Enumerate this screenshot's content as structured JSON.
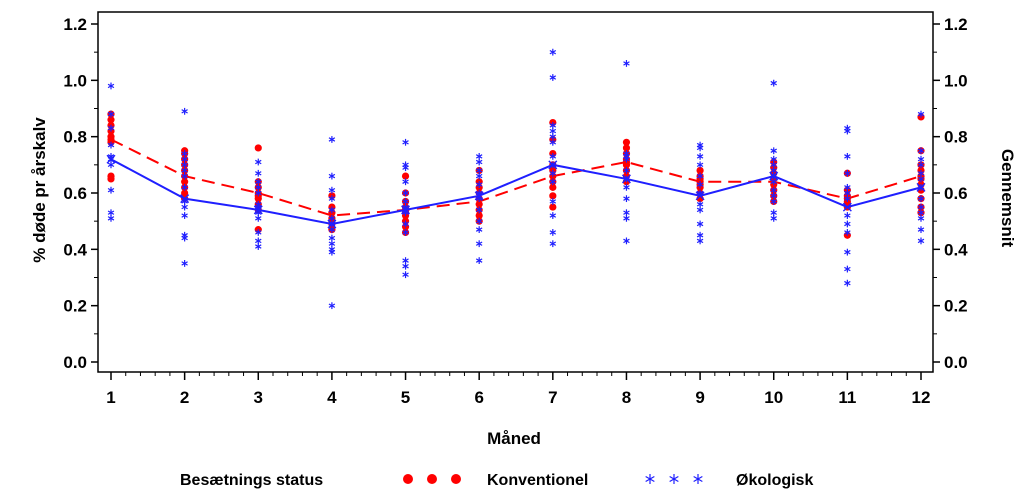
{
  "chart_data": {
    "type": "scatter",
    "xlabel": "Måned",
    "ylabel": "% døde pr årskalv",
    "y2label": "Gennemsnit",
    "x": [
      1,
      2,
      3,
      4,
      5,
      6,
      7,
      8,
      9,
      10,
      11,
      12
    ],
    "xlim": [
      1,
      12
    ],
    "ylim": [
      0.0,
      1.2
    ],
    "y_ticks": [
      "0.0",
      "0.2",
      "0.4",
      "0.6",
      "0.8",
      "1.0",
      "1.2"
    ],
    "grid": false,
    "legend": {
      "title": "Besætnings status",
      "placement": "bottom"
    },
    "series": [
      {
        "name": "Konventionel",
        "marker": "dot",
        "color": "#ff0000",
        "points": [
          [
            [
              0.88,
              0.86,
              0.84,
              0.82,
              0.8,
              0.79,
              0.78,
              0.66,
              0.65
            ]
          ],
          [
            [
              0.75,
              0.74,
              0.72,
              0.7,
              0.68,
              0.66,
              0.64,
              0.62,
              0.6,
              0.58
            ]
          ],
          [
            [
              0.76,
              0.64,
              0.62,
              0.6,
              0.59,
              0.58,
              0.56,
              0.54,
              0.47
            ]
          ],
          [
            [
              0.59,
              0.55,
              0.53,
              0.51,
              0.5,
              0.49,
              0.47
            ]
          ],
          [
            [
              0.66,
              0.6,
              0.57,
              0.55,
              0.54,
              0.53,
              0.52,
              0.5,
              0.48,
              0.46
            ]
          ],
          [
            [
              0.68,
              0.64,
              0.62,
              0.6,
              0.58,
              0.56,
              0.54,
              0.52,
              0.5
            ]
          ],
          [
            [
              0.85,
              0.79,
              0.74,
              0.7,
              0.68,
              0.66,
              0.64,
              0.62,
              0.59,
              0.55
            ]
          ],
          [
            [
              0.78,
              0.76,
              0.74,
              0.72,
              0.71,
              0.7,
              0.68,
              0.66,
              0.64
            ]
          ],
          [
            [
              0.68,
              0.66,
              0.65,
              0.64,
              0.63,
              0.62,
              0.6,
              0.58
            ]
          ],
          [
            [
              0.71,
              0.69,
              0.67,
              0.65,
              0.63,
              0.61,
              0.59,
              0.57
            ]
          ],
          [
            [
              0.67,
              0.61,
              0.59,
              0.58,
              0.57,
              0.56,
              0.55,
              0.45
            ]
          ],
          [
            [
              0.87,
              0.75,
              0.7,
              0.68,
              0.66,
              0.65,
              0.63,
              0.61,
              0.58,
              0.55,
              0.53
            ]
          ]
        ],
        "mean_line": [
          0.79,
          0.66,
          0.6,
          0.52,
          0.54,
          0.57,
          0.66,
          0.71,
          0.64,
          0.64,
          0.58,
          0.66
        ],
        "mean_line_style": "dashed"
      },
      {
        "name": "Økologisk",
        "marker": "star",
        "color": "#1f1fff",
        "points": [
          [
            [
              0.98,
              0.88,
              0.83,
              0.77,
              0.73,
              0.72,
              0.7,
              0.61,
              0.53,
              0.51
            ]
          ],
          [
            [
              0.89,
              0.74,
              0.72,
              0.7,
              0.68,
              0.66,
              0.62,
              0.57,
              0.55,
              0.52,
              0.45,
              0.44,
              0.35
            ]
          ],
          [
            [
              0.71,
              0.67,
              0.64,
              0.62,
              0.6,
              0.56,
              0.55,
              0.53,
              0.51,
              0.46,
              0.43,
              0.41
            ]
          ],
          [
            [
              0.79,
              0.66,
              0.61,
              0.58,
              0.54,
              0.51,
              0.49,
              0.47,
              0.44,
              0.42,
              0.4,
              0.39,
              0.2
            ]
          ],
          [
            [
              0.78,
              0.7,
              0.69,
              0.64,
              0.6,
              0.57,
              0.55,
              0.53,
              0.49,
              0.46,
              0.36,
              0.34,
              0.31
            ]
          ],
          [
            [
              0.73,
              0.71,
              0.68,
              0.66,
              0.63,
              0.6,
              0.58,
              0.54,
              0.5,
              0.47,
              0.42,
              0.36
            ]
          ],
          [
            [
              1.1,
              1.01,
              0.84,
              0.82,
              0.8,
              0.78,
              0.73,
              0.7,
              0.67,
              0.64,
              0.57,
              0.52,
              0.46,
              0.42
            ]
          ],
          [
            [
              1.06,
              0.74,
              0.73,
              0.72,
              0.68,
              0.65,
              0.62,
              0.58,
              0.53,
              0.51,
              0.43
            ]
          ],
          [
            [
              0.77,
              0.76,
              0.73,
              0.7,
              0.66,
              0.63,
              0.6,
              0.56,
              0.54,
              0.49,
              0.45,
              0.43
            ]
          ],
          [
            [
              0.99,
              0.75,
              0.72,
              0.7,
              0.68,
              0.66,
              0.64,
              0.61,
              0.59,
              0.57,
              0.53,
              0.51
            ]
          ],
          [
            [
              0.83,
              0.82,
              0.73,
              0.67,
              0.62,
              0.6,
              0.58,
              0.52,
              0.49,
              0.46,
              0.39,
              0.33,
              0.28
            ]
          ],
          [
            [
              0.88,
              0.75,
              0.72,
              0.7,
              0.67,
              0.65,
              0.62,
              0.58,
              0.55,
              0.53,
              0.51,
              0.47,
              0.43
            ]
          ]
        ],
        "mean_line": [
          0.72,
          0.58,
          0.54,
          0.49,
          0.54,
          0.59,
          0.7,
          0.65,
          0.59,
          0.66,
          0.55,
          0.62
        ],
        "mean_line_style": "solid"
      }
    ]
  }
}
